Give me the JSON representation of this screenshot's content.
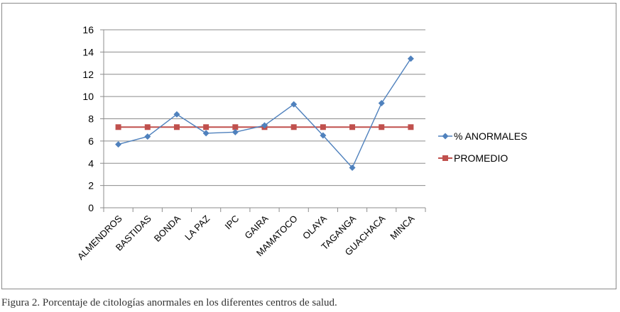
{
  "chart_data": {
    "type": "line",
    "categories": [
      "ALMENDROS",
      "BASTIDAS",
      "BONDA",
      "LA PAZ",
      "IPC",
      "GAIRA",
      "MAMATOCO",
      "OLAYA",
      "TAGANGA",
      "GUACHACA",
      "MINCA"
    ],
    "series": [
      {
        "name": "% ANORMALES",
        "color": "#4f81bd",
        "marker": "diamond",
        "values": [
          5.7,
          6.4,
          8.4,
          6.7,
          6.8,
          7.4,
          9.3,
          6.5,
          3.6,
          9.4,
          13.4
        ]
      },
      {
        "name": "PROMEDIO",
        "color": "#c0504d",
        "marker": "square",
        "values": [
          7.25,
          7.25,
          7.25,
          7.25,
          7.25,
          7.25,
          7.25,
          7.25,
          7.25,
          7.25,
          7.25
        ]
      }
    ],
    "ylim": [
      0,
      16
    ],
    "yticks": [
      0,
      2,
      4,
      6,
      8,
      10,
      12,
      14,
      16
    ],
    "grid": true,
    "legend": "right"
  },
  "caption": "Figura 2. Porcentaje de citologías anormales en los diferentes centros de salud."
}
